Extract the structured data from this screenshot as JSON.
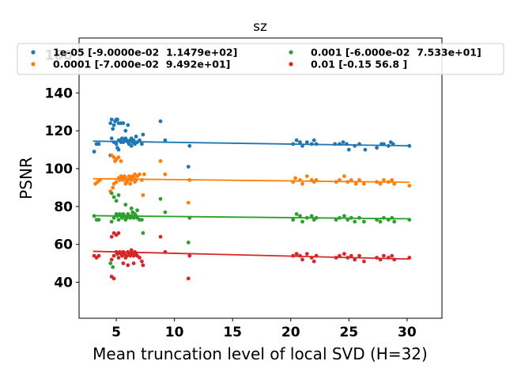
{
  "chart_data": {
    "type": "scatter",
    "title": "sz",
    "xlabel": "Mean truncation level of local SVD (H=32)",
    "ylabel": "PSNR",
    "xlim": [
      1.8,
      33.0
    ],
    "ylim": [
      21,
      169
    ],
    "xticks": [
      5,
      10,
      15,
      20,
      25,
      30
    ],
    "yticks": [
      40,
      60,
      80,
      100,
      120,
      140,
      160
    ],
    "grid": false,
    "legend": {
      "placement": "top",
      "columns": 2
    },
    "series": [
      {
        "name": "1e-05 [-9.0000e-02  1.1479e+02]",
        "color": "#1f77b4",
        "fit": {
          "slope": -0.09,
          "intercept": 114.79
        },
        "points": [
          [
            3.1,
            109
          ],
          [
            3.3,
            113
          ],
          [
            3.5,
            113
          ],
          [
            4.5,
            124
          ],
          [
            4.6,
            126
          ],
          [
            4.7,
            121
          ],
          [
            4.8,
            123
          ],
          [
            4.9,
            125
          ],
          [
            5.0,
            126
          ],
          [
            5.1,
            126
          ],
          [
            5.2,
            124
          ],
          [
            4.6,
            116
          ],
          [
            4.8,
            114
          ],
          [
            5.0,
            113
          ],
          [
            5.1,
            111
          ],
          [
            5.2,
            115
          ],
          [
            5.3,
            115
          ],
          [
            5.4,
            114
          ],
          [
            5.5,
            116
          ],
          [
            5.6,
            114
          ],
          [
            5.7,
            115
          ],
          [
            5.8,
            116
          ],
          [
            5.9,
            115
          ],
          [
            6.0,
            114
          ],
          [
            6.1,
            113
          ],
          [
            6.2,
            115
          ],
          [
            6.3,
            116
          ],
          [
            6.4,
            114
          ],
          [
            6.5,
            115
          ],
          [
            6.6,
            113
          ],
          [
            6.7,
            117
          ],
          [
            6.8,
            114
          ],
          [
            7.0,
            115
          ],
          [
            5.4,
            124
          ],
          [
            5.6,
            124
          ],
          [
            5.8,
            120
          ],
          [
            6.0,
            123
          ],
          [
            4.5,
            107
          ],
          [
            5.2,
            110
          ],
          [
            6.3,
            112
          ],
          [
            7.2,
            113
          ],
          [
            7.3,
            118
          ],
          [
            8.8,
            125
          ],
          [
            9.2,
            115
          ],
          [
            11.2,
            101
          ],
          [
            11.3,
            112
          ],
          [
            20.2,
            113
          ],
          [
            20.5,
            115
          ],
          [
            20.8,
            114
          ],
          [
            21.0,
            112
          ],
          [
            21.4,
            114
          ],
          [
            21.8,
            113
          ],
          [
            22.0,
            115
          ],
          [
            22.2,
            113
          ],
          [
            23.8,
            113
          ],
          [
            24.2,
            113
          ],
          [
            24.5,
            114
          ],
          [
            24.8,
            113
          ],
          [
            25.0,
            110
          ],
          [
            25.5,
            112
          ],
          [
            25.9,
            113
          ],
          [
            26.4,
            110
          ],
          [
            27.4,
            111
          ],
          [
            27.8,
            113
          ],
          [
            28.0,
            113
          ],
          [
            28.4,
            112
          ],
          [
            28.6,
            114
          ],
          [
            28.8,
            113
          ],
          [
            30.2,
            112
          ]
        ]
      },
      {
        "name": "0.0001 [-7.000e-02  9.492e+01]",
        "color": "#ff7f0e",
        "fit": {
          "slope": -0.07,
          "intercept": 94.92
        },
        "points": [
          [
            3.2,
            92
          ],
          [
            3.4,
            93
          ],
          [
            3.6,
            94
          ],
          [
            4.6,
            107
          ],
          [
            4.8,
            106
          ],
          [
            4.9,
            104
          ],
          [
            5.0,
            105
          ],
          [
            5.2,
            106
          ],
          [
            5.4,
            104
          ],
          [
            4.5,
            88
          ],
          [
            4.7,
            90
          ],
          [
            4.8,
            92
          ],
          [
            5.0,
            93
          ],
          [
            5.2,
            95
          ],
          [
            5.3,
            94
          ],
          [
            5.4,
            96
          ],
          [
            5.5,
            95
          ],
          [
            5.6,
            94
          ],
          [
            5.7,
            96
          ],
          [
            5.8,
            95
          ],
          [
            5.9,
            93
          ],
          [
            6.0,
            94
          ],
          [
            6.1,
            96
          ],
          [
            6.2,
            95
          ],
          [
            6.3,
            94
          ],
          [
            6.4,
            96
          ],
          [
            6.5,
            95
          ],
          [
            6.6,
            97
          ],
          [
            6.7,
            94
          ],
          [
            6.8,
            96
          ],
          [
            7.0,
            97
          ],
          [
            5.8,
            92
          ],
          [
            6.2,
            92
          ],
          [
            6.6,
            93
          ],
          [
            7.2,
            94
          ],
          [
            7.3,
            86
          ],
          [
            7.4,
            97
          ],
          [
            8.8,
            104
          ],
          [
            9.2,
            97
          ],
          [
            11.2,
            82
          ],
          [
            11.3,
            94
          ],
          [
            20.2,
            93
          ],
          [
            20.4,
            95
          ],
          [
            20.8,
            94
          ],
          [
            21.0,
            92
          ],
          [
            21.4,
            96
          ],
          [
            21.8,
            94
          ],
          [
            22.0,
            93
          ],
          [
            22.2,
            94
          ],
          [
            23.9,
            93
          ],
          [
            24.2,
            94
          ],
          [
            24.6,
            96
          ],
          [
            24.9,
            93
          ],
          [
            25.2,
            94
          ],
          [
            25.6,
            92
          ],
          [
            25.9,
            94
          ],
          [
            26.3,
            92
          ],
          [
            27.4,
            93
          ],
          [
            27.7,
            92
          ],
          [
            28.0,
            94
          ],
          [
            28.4,
            93
          ],
          [
            28.7,
            94
          ],
          [
            28.9,
            92
          ],
          [
            30.2,
            91
          ]
        ]
      },
      {
        "name": "0.001 [-6.000e-02  7.533e+01]",
        "color": "#2ca02c",
        "fit": {
          "slope": -0.06,
          "intercept": 75.33
        },
        "points": [
          [
            3.1,
            75
          ],
          [
            3.3,
            73
          ],
          [
            3.5,
            73
          ],
          [
            4.5,
            50
          ],
          [
            4.7,
            48
          ],
          [
            4.6,
            87
          ],
          [
            4.8,
            85
          ],
          [
            5.0,
            83
          ],
          [
            5.2,
            86
          ],
          [
            4.6,
            72
          ],
          [
            4.8,
            74
          ],
          [
            5.0,
            76
          ],
          [
            5.1,
            75
          ],
          [
            5.2,
            73
          ],
          [
            5.3,
            76
          ],
          [
            5.4,
            75
          ],
          [
            5.5,
            74
          ],
          [
            5.6,
            76
          ],
          [
            5.7,
            75
          ],
          [
            5.8,
            73
          ],
          [
            5.9,
            74
          ],
          [
            6.0,
            76
          ],
          [
            6.1,
            75
          ],
          [
            6.2,
            74
          ],
          [
            6.3,
            75
          ],
          [
            6.4,
            77
          ],
          [
            6.5,
            74
          ],
          [
            6.6,
            76
          ],
          [
            6.7,
            75
          ],
          [
            6.8,
            74
          ],
          [
            7.0,
            73
          ],
          [
            5.8,
            81
          ],
          [
            6.3,
            79
          ],
          [
            6.8,
            78
          ],
          [
            7.2,
            73
          ],
          [
            7.3,
            66
          ],
          [
            8.8,
            84
          ],
          [
            9.2,
            77
          ],
          [
            11.2,
            61
          ],
          [
            11.3,
            74
          ],
          [
            20.2,
            73
          ],
          [
            20.5,
            76
          ],
          [
            20.8,
            75
          ],
          [
            21.0,
            72
          ],
          [
            21.4,
            74
          ],
          [
            21.8,
            75
          ],
          [
            22.0,
            73
          ],
          [
            22.2,
            74
          ],
          [
            23.9,
            73
          ],
          [
            24.2,
            74
          ],
          [
            24.6,
            75
          ],
          [
            24.9,
            73
          ],
          [
            25.2,
            74
          ],
          [
            25.5,
            72
          ],
          [
            25.9,
            74
          ],
          [
            26.3,
            72
          ],
          [
            27.4,
            73
          ],
          [
            27.7,
            72
          ],
          [
            28.0,
            74
          ],
          [
            28.4,
            73
          ],
          [
            28.7,
            74
          ],
          [
            28.9,
            72
          ],
          [
            30.2,
            73
          ]
        ]
      },
      {
        "name": "0.01 [-0.15 56.8 ]",
        "color": "#d62728",
        "fit": {
          "slope": -0.15,
          "intercept": 56.8
        },
        "points": [
          [
            3.1,
            54
          ],
          [
            3.3,
            53
          ],
          [
            3.5,
            54
          ],
          [
            4.6,
            43
          ],
          [
            4.8,
            42
          ],
          [
            4.6,
            64
          ],
          [
            4.8,
            66
          ],
          [
            5.0,
            65
          ],
          [
            5.2,
            66
          ],
          [
            4.6,
            52
          ],
          [
            4.8,
            54
          ],
          [
            5.0,
            56
          ],
          [
            5.1,
            55
          ],
          [
            5.2,
            53
          ],
          [
            5.3,
            56
          ],
          [
            5.4,
            55
          ],
          [
            5.5,
            54
          ],
          [
            5.6,
            56
          ],
          [
            5.7,
            55
          ],
          [
            5.8,
            53
          ],
          [
            5.9,
            54
          ],
          [
            6.0,
            56
          ],
          [
            6.1,
            55
          ],
          [
            6.2,
            54
          ],
          [
            6.3,
            57
          ],
          [
            6.4,
            55
          ],
          [
            6.5,
            54
          ],
          [
            6.6,
            56
          ],
          [
            6.7,
            55
          ],
          [
            6.8,
            54
          ],
          [
            7.0,
            53
          ],
          [
            5.6,
            50
          ],
          [
            6.0,
            49
          ],
          [
            6.5,
            50
          ],
          [
            7.2,
            51
          ],
          [
            7.3,
            49
          ],
          [
            8.8,
            64
          ],
          [
            9.2,
            56
          ],
          [
            11.2,
            42
          ],
          [
            11.3,
            54
          ],
          [
            20.2,
            54
          ],
          [
            20.5,
            55
          ],
          [
            20.8,
            54
          ],
          [
            21.0,
            52
          ],
          [
            21.4,
            55
          ],
          [
            21.8,
            53
          ],
          [
            22.0,
            51
          ],
          [
            22.2,
            54
          ],
          [
            23.9,
            53
          ],
          [
            24.2,
            54
          ],
          [
            24.6,
            55
          ],
          [
            24.9,
            53
          ],
          [
            25.2,
            54
          ],
          [
            25.5,
            52
          ],
          [
            25.9,
            54
          ],
          [
            26.3,
            51
          ],
          [
            27.4,
            53
          ],
          [
            27.7,
            52
          ],
          [
            28.0,
            54
          ],
          [
            28.4,
            53
          ],
          [
            28.7,
            54
          ],
          [
            28.9,
            52
          ],
          [
            30.2,
            53
          ]
        ]
      }
    ]
  }
}
